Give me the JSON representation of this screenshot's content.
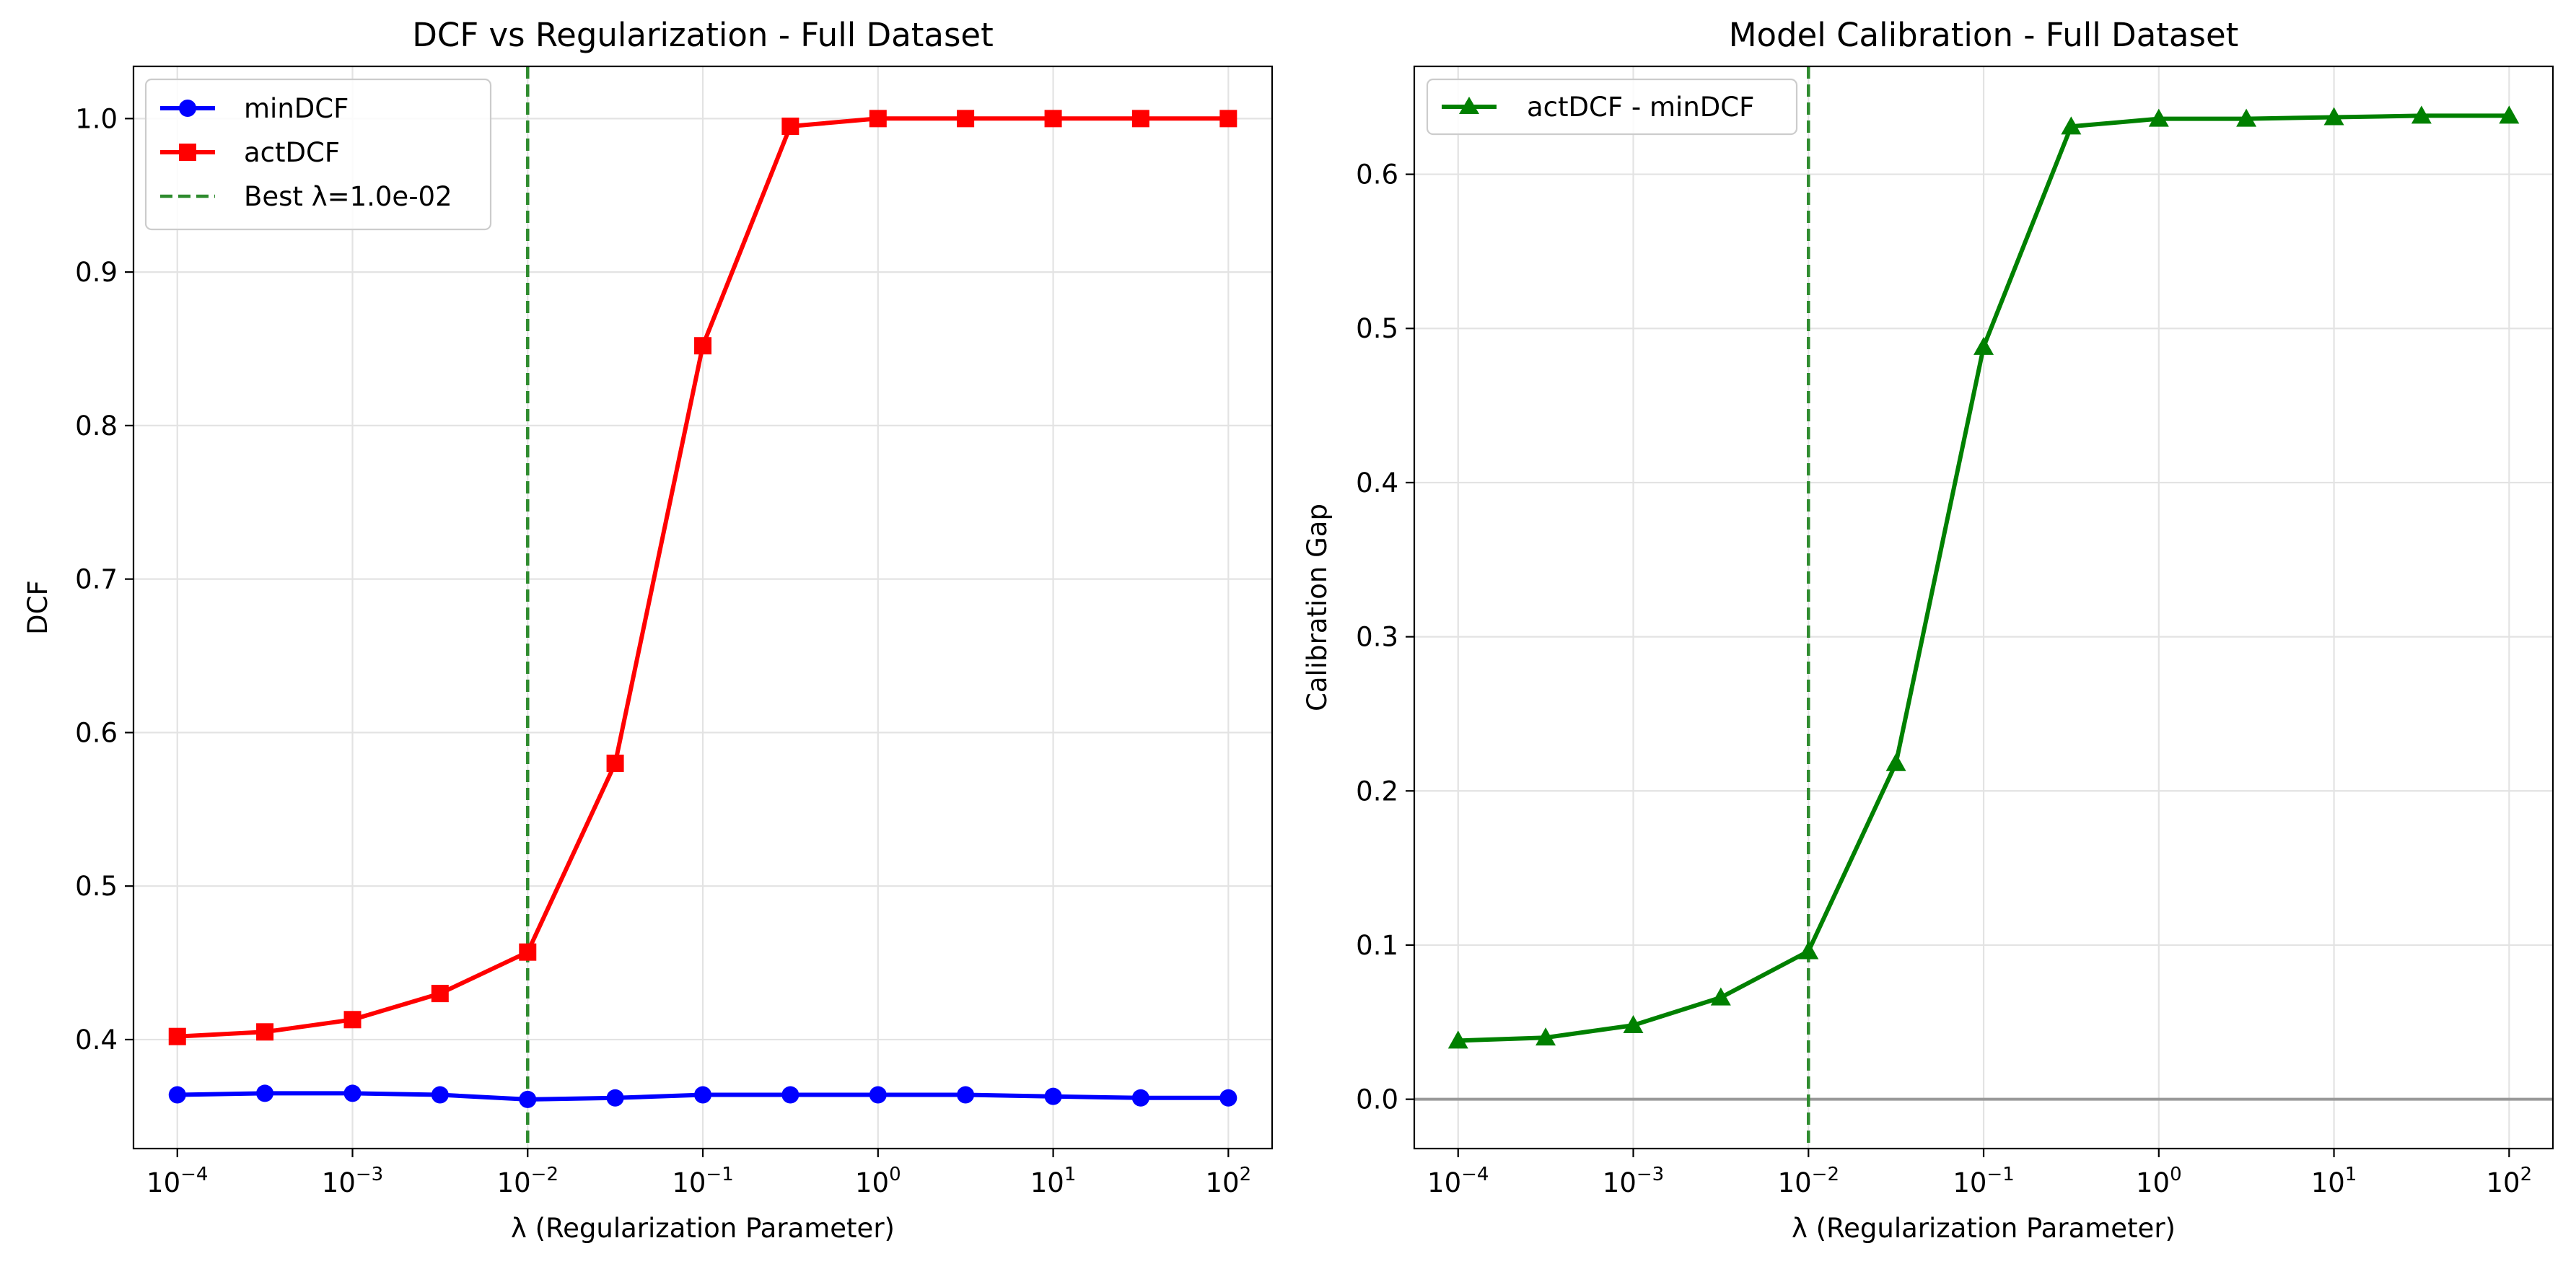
{
  "chart_data": [
    {
      "type": "line",
      "title": "DCF vs Regularization - Full Dataset",
      "xlabel": "λ (Regularization Parameter)",
      "ylabel": "DCF",
      "xscale": "log",
      "xlim": [
        5.62e-05,
        177.8
      ],
      "ylim": [
        0.329,
        1.034
      ],
      "grid": true,
      "legend_position": "upper-left",
      "xtick_values": [
        0.0001,
        0.001,
        0.01,
        0.1,
        1,
        10,
        100
      ],
      "xtick_labels": [
        {
          "base": "10",
          "exp": "−4"
        },
        {
          "base": "10",
          "exp": "−3"
        },
        {
          "base": "10",
          "exp": "−2"
        },
        {
          "base": "10",
          "exp": "−1"
        },
        {
          "base": "10",
          "exp": "0"
        },
        {
          "base": "10",
          "exp": "1"
        },
        {
          "base": "10",
          "exp": "2"
        }
      ],
      "ytick_values": [
        0.4,
        0.5,
        0.6,
        0.7,
        0.8,
        0.9,
        1.0
      ],
      "ytick_labels": [
        "0.4",
        "0.5",
        "0.6",
        "0.7",
        "0.8",
        "0.9",
        "1.0"
      ],
      "x": [
        0.0001,
        0.000316,
        0.001,
        0.00316,
        0.01,
        0.0316,
        0.1,
        0.316,
        1,
        3.16,
        10,
        31.6,
        100
      ],
      "series": [
        {
          "name": "minDCF",
          "color": "#0000ff",
          "marker": "circle",
          "values": [
            0.364,
            0.365,
            0.365,
            0.364,
            0.361,
            0.362,
            0.364,
            0.364,
            0.364,
            0.364,
            0.363,
            0.362,
            0.362
          ]
        },
        {
          "name": "actDCF",
          "color": "#ff0000",
          "marker": "square",
          "values": [
            0.402,
            0.405,
            0.413,
            0.43,
            0.457,
            0.58,
            0.852,
            0.995,
            1.0,
            1.0,
            1.0,
            1.0,
            1.0
          ]
        }
      ],
      "vlines": [
        {
          "x": 0.01,
          "label": "Best λ=1.0e-02",
          "color": "#2e8b2e",
          "style": "dashed"
        }
      ],
      "hlines": []
    },
    {
      "type": "line",
      "title": "Model Calibration - Full Dataset",
      "xlabel": "λ (Regularization Parameter)",
      "ylabel": "Calibration Gap",
      "xscale": "log",
      "xlim": [
        5.62e-05,
        177.8
      ],
      "ylim": [
        -0.032,
        0.67
      ],
      "grid": true,
      "legend_position": "upper-left",
      "xtick_values": [
        0.0001,
        0.001,
        0.01,
        0.1,
        1,
        10,
        100
      ],
      "xtick_labels": [
        {
          "base": "10",
          "exp": "−4"
        },
        {
          "base": "10",
          "exp": "−3"
        },
        {
          "base": "10",
          "exp": "−2"
        },
        {
          "base": "10",
          "exp": "−1"
        },
        {
          "base": "10",
          "exp": "0"
        },
        {
          "base": "10",
          "exp": "1"
        },
        {
          "base": "10",
          "exp": "2"
        }
      ],
      "ytick_values": [
        0.0,
        0.1,
        0.2,
        0.3,
        0.4,
        0.5,
        0.6
      ],
      "ytick_labels": [
        "0.0",
        "0.1",
        "0.2",
        "0.3",
        "0.4",
        "0.5",
        "0.6"
      ],
      "x": [
        0.0001,
        0.000316,
        0.001,
        0.00316,
        0.01,
        0.0316,
        0.1,
        0.316,
        1,
        3.16,
        10,
        31.6,
        100
      ],
      "series": [
        {
          "name": "actDCF - minDCF",
          "color": "#008000",
          "marker": "triangle",
          "values": [
            0.038,
            0.04,
            0.048,
            0.066,
            0.096,
            0.218,
            0.488,
            0.631,
            0.636,
            0.636,
            0.637,
            0.638,
            0.638
          ]
        }
      ],
      "vlines": [
        {
          "x": 0.01,
          "label": "",
          "color": "#2e8b2e",
          "style": "dashed"
        }
      ],
      "hlines": [
        {
          "y": 0.0,
          "color": "#999999"
        }
      ]
    }
  ]
}
